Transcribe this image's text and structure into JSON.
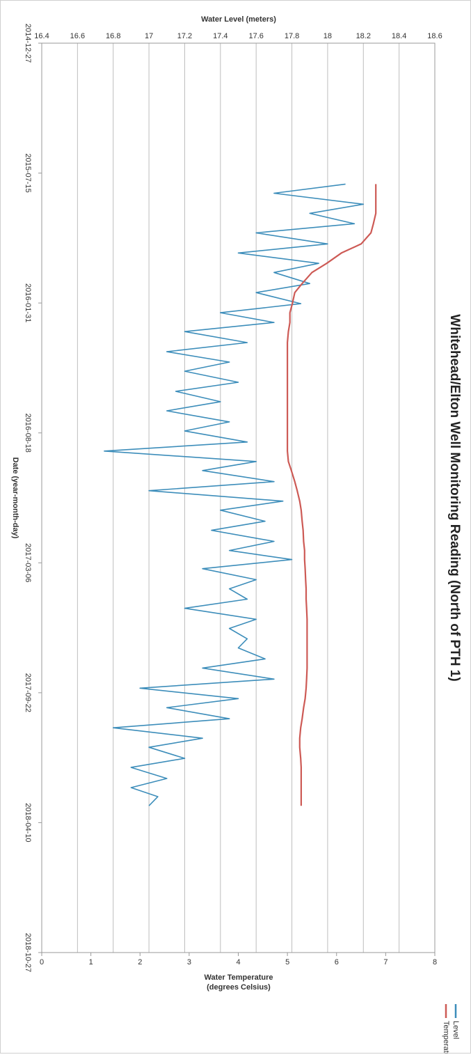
{
  "chart_data": {
    "type": "line",
    "title": "Whitehead/Elton Well Monitoring Reading (North of PTH 1)",
    "x_label": "Date (year-month-day)",
    "y_label": "Water Level (meters)",
    "y2_label": [
      "Water Temperature",
      "(degrees Celsius)"
    ],
    "xlim": [
      "2014-12-27",
      "2018-10-27"
    ],
    "xticks": [
      "2014-12-27",
      "2015-07-15",
      "2016-01-31",
      "2016-08-18",
      "2017-03-06",
      "2017-09-22",
      "2018-04-10",
      "2018-10-27"
    ],
    "ylim": [
      16.4,
      18.6
    ],
    "yticks": [
      16.4,
      16.6,
      16.8,
      17,
      17.2,
      17.4,
      17.6,
      17.8,
      18,
      18.2,
      18.4,
      18.6
    ],
    "y2lim": [
      0,
      8
    ],
    "y2ticks": [
      0,
      1,
      2,
      3,
      4,
      5,
      6,
      7,
      8
    ],
    "grid": true,
    "legend": "right",
    "x": [
      "2015-08-01",
      "2015-08-15",
      "2015-09-01",
      "2015-09-15",
      "2015-10-01",
      "2015-10-15",
      "2015-11-01",
      "2015-11-15",
      "2015-12-01",
      "2015-12-15",
      "2016-01-01",
      "2016-01-15",
      "2016-02-01",
      "2016-02-15",
      "2016-03-01",
      "2016-03-15",
      "2016-04-01",
      "2016-04-15",
      "2016-05-01",
      "2016-05-15",
      "2016-06-01",
      "2016-06-15",
      "2016-07-01",
      "2016-07-15",
      "2016-08-01",
      "2016-08-15",
      "2016-09-01",
      "2016-09-15",
      "2016-10-01",
      "2016-10-15",
      "2016-11-01",
      "2016-11-15",
      "2016-12-01",
      "2016-12-15",
      "2017-01-01",
      "2017-01-15",
      "2017-02-01",
      "2017-02-15",
      "2017-03-01",
      "2017-03-15",
      "2017-04-01",
      "2017-04-15",
      "2017-05-01",
      "2017-05-15",
      "2017-06-01",
      "2017-06-15",
      "2017-07-01",
      "2017-07-15",
      "2017-08-01",
      "2017-08-15",
      "2017-09-01",
      "2017-09-15",
      "2017-10-01",
      "2017-10-15",
      "2017-11-01",
      "2017-11-15",
      "2017-12-01",
      "2017-12-15",
      "2018-01-01",
      "2018-01-15",
      "2018-02-01",
      "2018-02-15",
      "2018-03-01",
      "2018-03-15"
    ],
    "series": [
      {
        "name": "Level",
        "color": "#3c8dba",
        "values": [
          18.1,
          17.7,
          18.2,
          17.9,
          18.15,
          17.6,
          18.0,
          17.5,
          17.95,
          17.7,
          17.9,
          17.6,
          17.85,
          17.4,
          17.7,
          17.2,
          17.55,
          17.1,
          17.45,
          17.2,
          17.5,
          17.15,
          17.4,
          17.1,
          17.45,
          17.2,
          17.55,
          16.75,
          17.6,
          17.3,
          17.7,
          17.0,
          17.75,
          17.4,
          17.65,
          17.35,
          17.7,
          17.45,
          17.8,
          17.3,
          17.6,
          17.45,
          17.55,
          17.2,
          17.6,
          17.45,
          17.55,
          17.5,
          17.65,
          17.3,
          17.7,
          16.95,
          17.5,
          17.1,
          17.45,
          16.8,
          17.3,
          17.0,
          17.2,
          16.9,
          17.1,
          16.9,
          17.05,
          17.0
        ]
      },
      {
        "name": "Temperature",
        "color": "#cd5a55",
        "axis": "y2",
        "values": [
          6.8,
          6.8,
          6.8,
          6.8,
          6.75,
          6.7,
          6.5,
          6.1,
          5.8,
          5.5,
          5.3,
          5.15,
          5.1,
          5.05,
          5.05,
          5.02,
          5.0,
          5.0,
          5.0,
          5.0,
          5.0,
          5.0,
          5.0,
          5.0,
          5.0,
          5.0,
          5.0,
          5.0,
          5.02,
          5.08,
          5.15,
          5.2,
          5.25,
          5.28,
          5.3,
          5.32,
          5.33,
          5.35,
          5.35,
          5.36,
          5.37,
          5.38,
          5.38,
          5.39,
          5.4,
          5.4,
          5.4,
          5.4,
          5.4,
          5.4,
          5.39,
          5.38,
          5.36,
          5.33,
          5.3,
          5.27,
          5.25,
          5.25,
          5.27,
          5.28,
          5.28,
          5.28,
          5.28,
          5.28
        ]
      }
    ]
  }
}
